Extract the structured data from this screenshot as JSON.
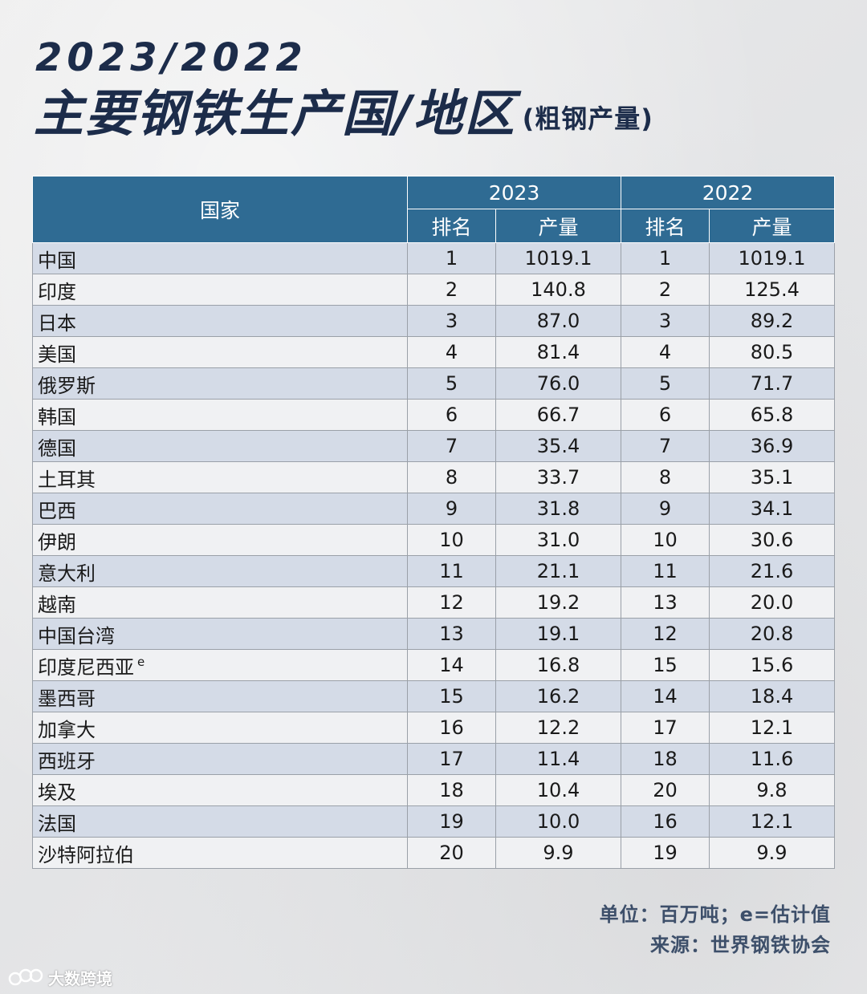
{
  "title": {
    "years": "2023/2022",
    "main": "主要钢铁生产国/地区",
    "sub": "(粗钢产量)"
  },
  "table": {
    "country_header": "国家",
    "year_2023": "2023",
    "year_2022": "2022",
    "rank_header": "排名",
    "output_header": "产量",
    "rows": [
      {
        "country": "中国",
        "sup": "",
        "rank2023": "1",
        "out2023": "1019.1",
        "rank2022": "1",
        "out2022": "1019.1"
      },
      {
        "country": "印度",
        "sup": "",
        "rank2023": "2",
        "out2023": "140.8",
        "rank2022": "2",
        "out2022": "125.4"
      },
      {
        "country": "日本",
        "sup": "",
        "rank2023": "3",
        "out2023": "87.0",
        "rank2022": "3",
        "out2022": "89.2"
      },
      {
        "country": "美国",
        "sup": "",
        "rank2023": "4",
        "out2023": "81.4",
        "rank2022": "4",
        "out2022": "80.5"
      },
      {
        "country": "俄罗斯",
        "sup": "",
        "rank2023": "5",
        "out2023": "76.0",
        "rank2022": "5",
        "out2022": "71.7"
      },
      {
        "country": "韩国",
        "sup": "",
        "rank2023": "6",
        "out2023": "66.7",
        "rank2022": "6",
        "out2022": "65.8"
      },
      {
        "country": "德国",
        "sup": "",
        "rank2023": "7",
        "out2023": "35.4",
        "rank2022": "7",
        "out2022": "36.9"
      },
      {
        "country": "土耳其",
        "sup": "",
        "rank2023": "8",
        "out2023": "33.7",
        "rank2022": "8",
        "out2022": "35.1"
      },
      {
        "country": "巴西",
        "sup": "",
        "rank2023": "9",
        "out2023": "31.8",
        "rank2022": "9",
        "out2022": "34.1"
      },
      {
        "country": "伊朗",
        "sup": "",
        "rank2023": "10",
        "out2023": "31.0",
        "rank2022": "10",
        "out2022": "30.6"
      },
      {
        "country": "意大利",
        "sup": "",
        "rank2023": "11",
        "out2023": "21.1",
        "rank2022": "11",
        "out2022": "21.6"
      },
      {
        "country": "越南",
        "sup": "",
        "rank2023": "12",
        "out2023": "19.2",
        "rank2022": "13",
        "out2022": "20.0"
      },
      {
        "country": "中国台湾",
        "sup": "",
        "rank2023": "13",
        "out2023": "19.1",
        "rank2022": "12",
        "out2022": "20.8"
      },
      {
        "country": "印度尼西亚",
        "sup": "e",
        "rank2023": "14",
        "out2023": "16.8",
        "rank2022": "15",
        "out2022": "15.6"
      },
      {
        "country": "墨西哥",
        "sup": "",
        "rank2023": "15",
        "out2023": "16.2",
        "rank2022": "14",
        "out2022": "18.4"
      },
      {
        "country": "加拿大",
        "sup": "",
        "rank2023": "16",
        "out2023": "12.2",
        "rank2022": "17",
        "out2022": "12.1"
      },
      {
        "country": "西班牙",
        "sup": "",
        "rank2023": "17",
        "out2023": "11.4",
        "rank2022": "18",
        "out2022": "11.6"
      },
      {
        "country": "埃及",
        "sup": "",
        "rank2023": "18",
        "out2023": "10.4",
        "rank2022": "20",
        "out2022": "9.8"
      },
      {
        "country": "法国",
        "sup": "",
        "rank2023": "19",
        "out2023": "10.0",
        "rank2022": "16",
        "out2022": "12.1"
      },
      {
        "country": "沙特阿拉伯",
        "sup": "",
        "rank2023": "20",
        "out2023": "9.9",
        "rank2022": "19",
        "out2022": "9.9"
      }
    ]
  },
  "notes": {
    "unit": "单位：百万吨；e=估计值",
    "source": "来源：世界钢铁协会"
  },
  "watermark": {
    "text": "大数跨境",
    "icon": "logo-icon"
  },
  "colors": {
    "header_bg": "#2f6b93",
    "title": "#1c2c4a",
    "row_odd": "#d4dbe7",
    "row_even": "#f0f1f3"
  }
}
